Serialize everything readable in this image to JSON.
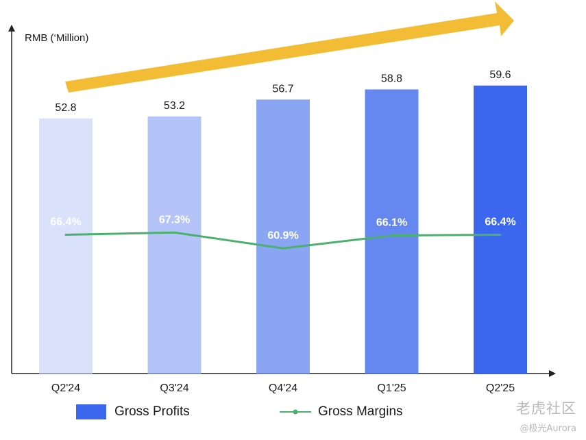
{
  "chart_data": {
    "type": "bar",
    "categories": [
      "Q2'24",
      "Q3'24",
      "Q4'24",
      "Q1'25",
      "Q2'25"
    ],
    "series": [
      {
        "name": "Gross Profits",
        "type": "bar",
        "values": [
          52.8,
          53.2,
          56.7,
          58.8,
          59.6
        ],
        "value_labels": [
          "52.8",
          "53.2",
          "56.7",
          "58.8",
          "59.6"
        ],
        "colors": [
          "#d9e1fb",
          "#b4c4f8",
          "#8aa5f2",
          "#6487f0",
          "#3b66ee"
        ]
      },
      {
        "name": "Gross Margins",
        "type": "line",
        "values": [
          66.4,
          67.3,
          60.9,
          66.1,
          66.4
        ],
        "value_labels": [
          "66.4%",
          "67.3%",
          "60.9%",
          "66.1%",
          "66.4%"
        ],
        "color": "#4caf6e"
      }
    ],
    "ylabel": "RMB (‘Million)",
    "xlabel": "",
    "ylim": [
      0,
      70
    ],
    "grid": false,
    "legend_position": "bottom",
    "trend_arrow_color": "#f2bd34"
  },
  "legend": {
    "bar_label": "Gross Profits",
    "bar_color": "#3b66ee",
    "line_label": "Gross Margins",
    "line_color": "#4caf6e"
  },
  "watermark": {
    "line1": "老虎社区",
    "line2": "@极光Aurora"
  }
}
